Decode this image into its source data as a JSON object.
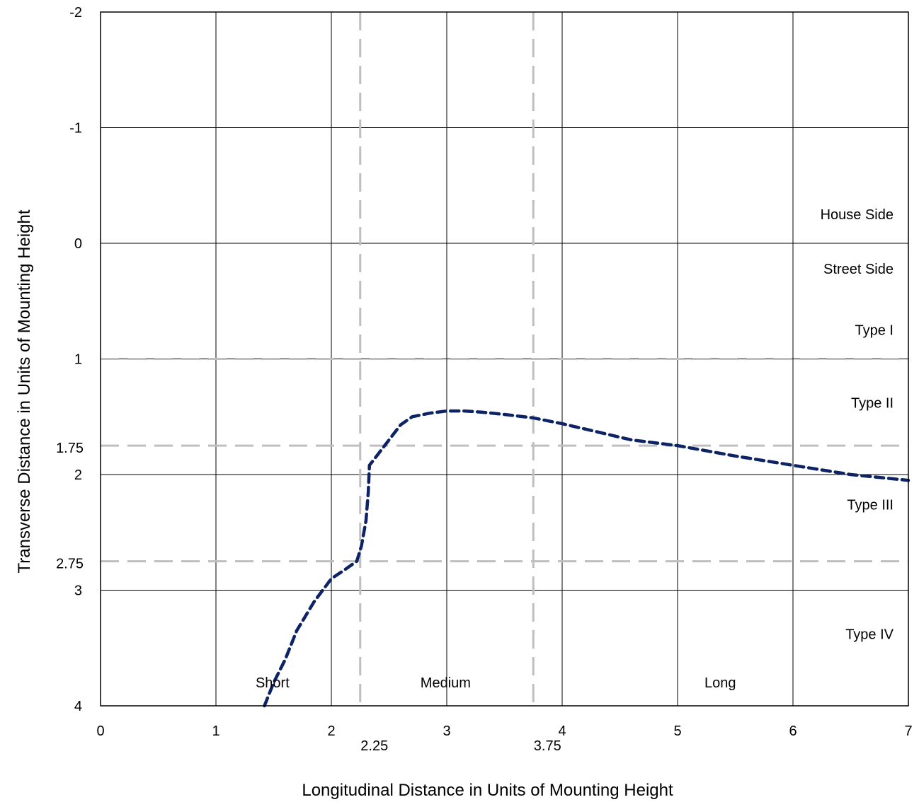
{
  "chart_data": {
    "type": "line",
    "title": "",
    "xlabel": "Longitudinal Distance in Units of Mounting Height",
    "ylabel": "Transverse Distance in Units of Mounting Height",
    "xlim": [
      0,
      7
    ],
    "ylim": [
      -2,
      4
    ],
    "y_inverted": true,
    "grid": true,
    "x_ticks": [
      0,
      1,
      2,
      3,
      4,
      5,
      6,
      7
    ],
    "y_ticks": [
      -2,
      -1,
      0,
      1,
      2,
      3,
      4
    ],
    "extra_x_ticks": [
      "2.25",
      "3.75"
    ],
    "extra_y_ticks": [
      "1.75",
      "2.75"
    ],
    "reference_lines": {
      "vertical": [
        2.25,
        3.75
      ],
      "horizontal": [
        1,
        1.75,
        2.75
      ],
      "style": "dashed",
      "color": "#bfbfbf"
    },
    "zone_labels": {
      "lateral": [
        {
          "text": "House Side",
          "y": -0.25
        },
        {
          "text": "Street Side",
          "y": 0.22
        },
        {
          "text": "Type I",
          "y": 0.75
        },
        {
          "text": "Type II",
          "y": 1.38
        },
        {
          "text": "Type III",
          "y": 2.26
        },
        {
          "text": "Type IV",
          "y": 3.38
        }
      ],
      "longitudinal": [
        {
          "text": "Short",
          "x": 1.49
        },
        {
          "text": "Medium",
          "x": 2.99
        },
        {
          "text": "Long",
          "x": 5.37
        }
      ]
    },
    "series": [
      {
        "color": "#0d2366",
        "style": "dashed",
        "points": [
          [
            1.42,
            4.0
          ],
          [
            1.5,
            3.8
          ],
          [
            1.6,
            3.6
          ],
          [
            1.7,
            3.35
          ],
          [
            1.85,
            3.1
          ],
          [
            2.0,
            2.9
          ],
          [
            2.12,
            2.82
          ],
          [
            2.22,
            2.75
          ],
          [
            2.26,
            2.62
          ],
          [
            2.3,
            2.4
          ],
          [
            2.32,
            2.15
          ],
          [
            2.33,
            1.92
          ],
          [
            2.4,
            1.83
          ],
          [
            2.5,
            1.7
          ],
          [
            2.6,
            1.57
          ],
          [
            2.7,
            1.5
          ],
          [
            2.85,
            1.47
          ],
          [
            3.0,
            1.45
          ],
          [
            3.15,
            1.45
          ],
          [
            3.3,
            1.46
          ],
          [
            3.5,
            1.48
          ],
          [
            3.75,
            1.51
          ],
          [
            4.0,
            1.56
          ],
          [
            4.3,
            1.63
          ],
          [
            4.6,
            1.7
          ],
          [
            5.0,
            1.75
          ],
          [
            5.5,
            1.84
          ],
          [
            6.0,
            1.92
          ],
          [
            6.5,
            2.0
          ],
          [
            7.0,
            2.05
          ]
        ]
      }
    ]
  }
}
